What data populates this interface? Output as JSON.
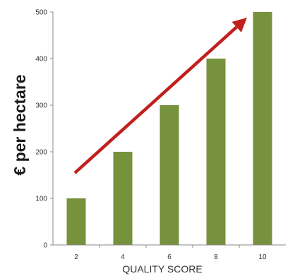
{
  "chart_data": {
    "type": "bar",
    "categories": [
      "2",
      "4",
      "6",
      "8",
      "10"
    ],
    "values": [
      100,
      200,
      300,
      400,
      500
    ],
    "ylim": [
      0,
      500
    ],
    "yticks": [
      "0",
      "100",
      "200",
      "300",
      "400",
      "500"
    ],
    "ylabel": "€ per hectare",
    "xlabel": "QUALITY SCORE",
    "grid": false,
    "colors": {
      "bar": "#76923c",
      "arrow": "#c0201e",
      "axis": "#888888"
    },
    "annotation": {
      "type": "trend-arrow",
      "direction": "up"
    }
  }
}
